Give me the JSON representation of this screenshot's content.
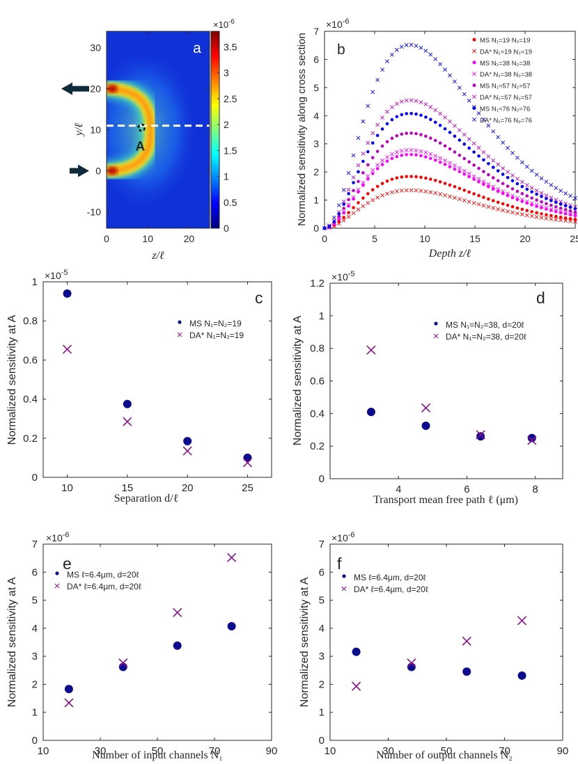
{
  "colors": {
    "ms": "#0b0b8f",
    "da": "#8b0f8b",
    "axis": "#262626",
    "arrow": "#0f2a3a",
    "dashed": "#ffffff",
    "bg": "#1030d8",
    "series_b": [
      "#ff0000",
      "#ff0000",
      "#ff00ff",
      "#ff00ff",
      "#c000c0",
      "#c000c0",
      "#0000ff",
      "#0000ff"
    ]
  },
  "chart_data": [
    {
      "id": "a",
      "type": "heatmap",
      "panel_label": "a",
      "xlabel": "z/ℓ",
      "ylabel": "y/ℓ",
      "xlim": [
        0,
        25
      ],
      "ylim": [
        -14,
        34
      ],
      "xticks": [
        "0",
        "10",
        "20"
      ],
      "yticks": [
        "-10",
        "0",
        "10",
        "20",
        "30"
      ],
      "colorbar": {
        "min": 0,
        "max": 3.8,
        "ticks": [
          "0",
          "0.5",
          "1",
          "1.5",
          "2",
          "2.5",
          "3",
          "3.5"
        ],
        "exponent": "×10",
        "exponent_power": "-6"
      },
      "point_label": "A",
      "point": {
        "z": 8.5,
        "y": 10.5
      },
      "dashed_line_y": 11,
      "source_y": 20,
      "detector_y": 0
    },
    {
      "id": "b",
      "type": "scatter",
      "panel_label": "b",
      "xlabel": "Depth z/ℓ",
      "ylabel": "Normalized sensitivity along cross section",
      "xlim": [
        0,
        25
      ],
      "ylim": [
        0,
        7
      ],
      "xticks": [
        "0",
        "5",
        "10",
        "15",
        "20",
        "25"
      ],
      "yticks": [
        "0",
        "1",
        "2",
        "3",
        "4",
        "5",
        "6",
        "7"
      ],
      "exponent": "×10",
      "exponent_power": "-6",
      "series": [
        {
          "name": "MS N₁=19 N₂=19",
          "marker": "dot",
          "peak": 1.84,
          "tail": 0.28
        },
        {
          "name": "DA* N₁=19 N₂=19",
          "marker": "x",
          "peak": 1.35,
          "tail": 0.2
        },
        {
          "name": "MS N₁=38 N₂=38",
          "marker": "dot",
          "peak": 2.62,
          "tail": 0.38
        },
        {
          "name": "DA* N₁=38 N₂=38",
          "marker": "x",
          "peak": 2.78,
          "tail": 0.4
        },
        {
          "name": "MS N₁=57 N₂=57",
          "marker": "dot",
          "peak": 3.38,
          "tail": 0.46
        },
        {
          "name": "DA* N₁=57 N₂=57",
          "marker": "x",
          "peak": 4.55,
          "tail": 0.52
        },
        {
          "name": "MS N₁=76 N₂=76",
          "marker": "dot",
          "peak": 4.08,
          "tail": 0.55
        },
        {
          "name": "DA* N₁=76 N₂=76",
          "marker": "x",
          "peak": 6.52,
          "tail": 0.62
        }
      ]
    },
    {
      "id": "c",
      "type": "scatter",
      "panel_label": "c",
      "xlabel": "Separation d/ℓ",
      "ylabel": "Normalized sensitivity at A",
      "xlim": [
        8,
        27
      ],
      "ylim": [
        0,
        1.0
      ],
      "xticks": [
        "10",
        "15",
        "20",
        "25"
      ],
      "yticks": [
        "0",
        "0.2",
        "0.4",
        "0.6",
        "0.8",
        "1"
      ],
      "exponent": "×10",
      "exponent_power": "-5",
      "x": [
        10,
        15,
        20,
        25
      ],
      "series": [
        {
          "name": "MS N₁=N₂=19",
          "marker": "dot",
          "values": [
            0.94,
            0.375,
            0.185,
            0.1
          ]
        },
        {
          "name": "DA* N₁=N₂=19",
          "marker": "x",
          "values": [
            0.655,
            0.285,
            0.135,
            0.075
          ]
        }
      ]
    },
    {
      "id": "d",
      "type": "scatter",
      "panel_label": "d",
      "xlabel": "Transport mean free path ℓ (μm)",
      "ylabel": "Normalized sensitivity at A",
      "xlim": [
        2,
        8.8
      ],
      "ylim": [
        0,
        1.2
      ],
      "xticks": [
        "4",
        "6",
        "8"
      ],
      "yticks": [
        "0",
        "0.2",
        "0.4",
        "0.6",
        "0.8",
        "1",
        "1.2"
      ],
      "exponent": "×10",
      "exponent_power": "-5",
      "x": [
        3.2,
        4.8,
        6.4,
        7.9
      ],
      "series": [
        {
          "name": "MS   N₁=N₂=38, d=20ℓ",
          "marker": "dot",
          "values": [
            0.41,
            0.325,
            0.26,
            0.25
          ]
        },
        {
          "name": "DA* N₁=N₂=38, d=20ℓ",
          "marker": "x",
          "values": [
            0.79,
            0.435,
            0.27,
            0.235
          ]
        }
      ]
    },
    {
      "id": "e",
      "type": "scatter",
      "panel_label": "e",
      "xlabel": "Number of input channels N₁",
      "ylabel": "Normalized sensitivity at A",
      "xlim": [
        10,
        90
      ],
      "ylim": [
        0,
        7
      ],
      "xticks": [
        "10",
        "30",
        "50",
        "70",
        "90"
      ],
      "yticks": [
        "0",
        "1",
        "2",
        "3",
        "4",
        "5",
        "6",
        "7"
      ],
      "exponent": "×10",
      "exponent_power": "-6",
      "x": [
        19,
        38,
        57,
        76
      ],
      "series": [
        {
          "name": "MS ℓ=6.4μm, d=20ℓ",
          "marker": "dot",
          "values": [
            1.83,
            2.62,
            3.38,
            4.07
          ]
        },
        {
          "name": "DA* ℓ=6.4μm, d=20ℓ",
          "marker": "x",
          "values": [
            1.34,
            2.76,
            4.56,
            6.52
          ]
        }
      ]
    },
    {
      "id": "f",
      "type": "scatter",
      "panel_label": "f",
      "xlabel": "Number of output channels N₂",
      "ylabel": "Normalized sensitivity at A",
      "xlim": [
        10,
        90
      ],
      "ylim": [
        0,
        7
      ],
      "xticks": [
        "10",
        "30",
        "50",
        "70",
        "90"
      ],
      "yticks": [
        "0",
        "1",
        "2",
        "3",
        "4",
        "5",
        "6",
        "7"
      ],
      "exponent": "×10",
      "exponent_power": "-6",
      "x": [
        19,
        38,
        57,
        76
      ],
      "series": [
        {
          "name": "MS ℓ=6.4μm, d=20ℓ",
          "marker": "dot",
          "values": [
            3.16,
            2.62,
            2.45,
            2.31
          ]
        },
        {
          "name": "DA* ℓ=6.4μm, d=20ℓ",
          "marker": "x",
          "values": [
            1.93,
            2.76,
            3.54,
            4.27
          ]
        }
      ]
    }
  ]
}
